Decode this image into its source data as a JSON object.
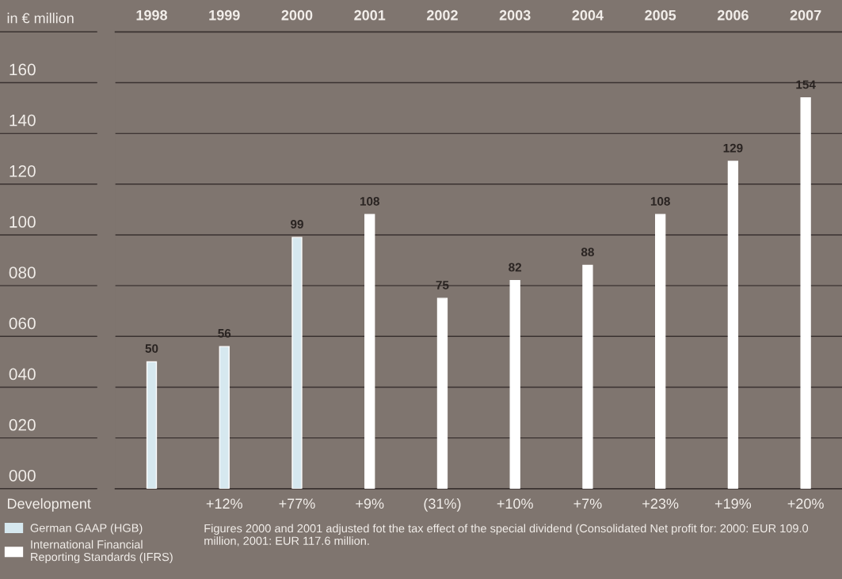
{
  "chart_data": {
    "type": "bar",
    "ylabel": "in € million",
    "categories": [
      "1998",
      "1999",
      "2000",
      "2001",
      "2002",
      "2003",
      "2004",
      "2005",
      "2006",
      "2007"
    ],
    "series": [
      {
        "name": "German GAAP (HGB)",
        "color": "#d6e8ef",
        "values": [
          50,
          56,
          99,
          null,
          null,
          null,
          null,
          null,
          null,
          null
        ]
      },
      {
        "name": "International Financial\nReporting Standards (IFRS)",
        "color": "#ffffff",
        "values": [
          null,
          null,
          null,
          108,
          75,
          82,
          88,
          108,
          129,
          154
        ]
      }
    ],
    "ylim": [
      0,
      180
    ],
    "yticks": [
      {
        "value": 0,
        "label": "000"
      },
      {
        "value": 20,
        "label": "020"
      },
      {
        "value": 40,
        "label": "040"
      },
      {
        "value": 60,
        "label": "060"
      },
      {
        "value": 80,
        "label": "080"
      },
      {
        "value": 100,
        "label": "100"
      },
      {
        "value": 120,
        "label": "120"
      },
      {
        "value": 140,
        "label": "140"
      },
      {
        "value": 160,
        "label": "160"
      },
      {
        "value": 180,
        "label": null
      }
    ],
    "grid": "y",
    "data_labels": true,
    "legend": "bottom left",
    "annotations": [
      "Development",
      "+12%",
      "+77%",
      "+9%",
      "(31%)",
      "+10%",
      "+7%",
      "+23%",
      "+19%",
      "+20%",
      "Figures 2000 and 2001 adjusted fot the tax effect of the special dividend (Consolidated Net profit for: 2000: EUR 109.0 million, 2001: EUR 117.6 million."
    ]
  }
}
